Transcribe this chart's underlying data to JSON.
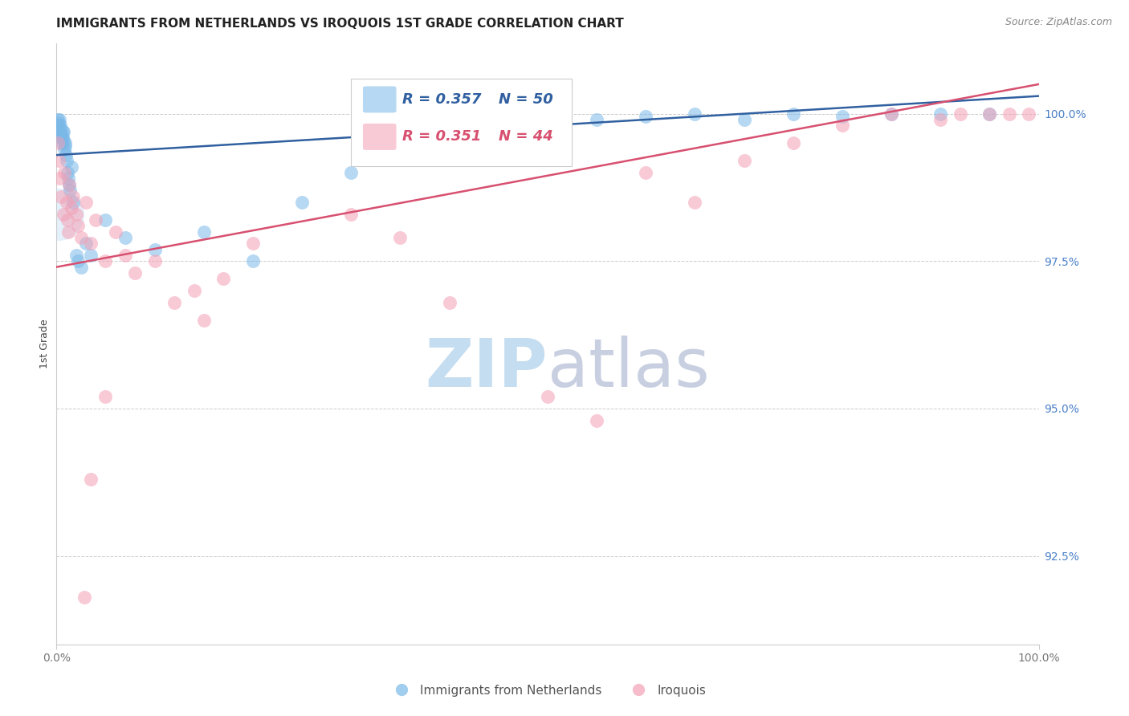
{
  "title": "IMMIGRANTS FROM NETHERLANDS VS IROQUOIS 1ST GRADE CORRELATION CHART",
  "source": "Source: ZipAtlas.com",
  "ylabel_left": "1st Grade",
  "y_ticks_right": [
    100.0,
    97.5,
    95.0,
    92.5
  ],
  "y_ticks_right_labels": [
    "100.0%",
    "97.5%",
    "95.0%",
    "92.5%"
  ],
  "y_min": 91.0,
  "y_max": 101.2,
  "x_min": 0.0,
  "x_max": 100.0,
  "blue_R": 0.357,
  "blue_N": 50,
  "pink_R": 0.351,
  "pink_N": 44,
  "blue_color": "#7ab8e8",
  "pink_color": "#f4a0b5",
  "blue_line_color": "#3060a0",
  "pink_line_color": "#d85070",
  "right_axis_color": "#4a80c8",
  "grid_color": "#cccccc",
  "blue_scatter_x": [
    0.1,
    0.15,
    0.2,
    0.25,
    0.3,
    0.35,
    0.4,
    0.45,
    0.5,
    0.55,
    0.6,
    0.65,
    0.7,
    0.75,
    0.8,
    0.85,
    0.9,
    0.95,
    1.0,
    1.1,
    1.2,
    1.3,
    1.4,
    1.5,
    1.7,
    2.0,
    2.2,
    2.5,
    3.0,
    3.5,
    5.0,
    7.0,
    10.0,
    15.0,
    20.0,
    25.0,
    30.0,
    35.0,
    40.0,
    45.0,
    50.0,
    55.0,
    60.0,
    65.0,
    70.0,
    75.0,
    80.0,
    85.0,
    90.0,
    95.0
  ],
  "blue_scatter_y": [
    99.9,
    99.8,
    99.85,
    99.7,
    99.9,
    99.75,
    99.8,
    99.6,
    99.65,
    99.5,
    99.7,
    99.6,
    99.55,
    99.7,
    99.4,
    99.5,
    99.45,
    99.3,
    99.2,
    99.0,
    98.9,
    98.8,
    98.7,
    99.1,
    98.5,
    97.6,
    97.5,
    97.4,
    97.8,
    97.6,
    98.2,
    97.9,
    97.7,
    98.0,
    97.5,
    98.5,
    99.0,
    99.3,
    99.5,
    99.7,
    99.8,
    99.9,
    99.95,
    100.0,
    99.9,
    100.0,
    99.95,
    100.0,
    100.0,
    100.0
  ],
  "pink_scatter_x": [
    0.1,
    0.2,
    0.3,
    0.5,
    0.7,
    0.8,
    1.0,
    1.1,
    1.2,
    1.3,
    1.5,
    1.7,
    2.0,
    2.2,
    2.5,
    3.0,
    3.5,
    4.0,
    5.0,
    6.0,
    7.0,
    8.0,
    10.0,
    12.0,
    14.0,
    15.0,
    17.0,
    20.0,
    30.0,
    35.0,
    40.0,
    50.0,
    55.0,
    60.0,
    65.0,
    70.0,
    75.0,
    80.0,
    85.0,
    90.0,
    92.0,
    95.0,
    97.0,
    99.0
  ],
  "pink_scatter_y": [
    99.5,
    99.2,
    98.9,
    98.6,
    98.3,
    99.0,
    98.5,
    98.2,
    98.0,
    98.8,
    98.4,
    98.6,
    98.3,
    98.1,
    97.9,
    98.5,
    97.8,
    98.2,
    97.5,
    98.0,
    97.6,
    97.3,
    97.5,
    96.8,
    97.0,
    96.5,
    97.2,
    97.8,
    98.3,
    97.9,
    96.8,
    95.2,
    94.8,
    99.0,
    98.5,
    99.2,
    99.5,
    99.8,
    100.0,
    99.9,
    100.0,
    100.0,
    100.0,
    100.0
  ],
  "blue_large_x": 0.12,
  "blue_large_y": 98.3,
  "blue_large_size": 2200,
  "pink_outlier1_x": 5.0,
  "pink_outlier1_y": 95.2,
  "pink_outlier2_x": 3.5,
  "pink_outlier2_y": 93.8,
  "pink_outlier3_x": 2.8,
  "pink_outlier3_y": 91.8,
  "blue_line_x0": 0.0,
  "blue_line_x1": 100.0,
  "blue_line_y0": 99.3,
  "blue_line_y1": 100.3,
  "pink_line_x0": 0.0,
  "pink_line_x1": 100.0,
  "pink_line_y0": 97.4,
  "pink_line_y1": 100.5
}
